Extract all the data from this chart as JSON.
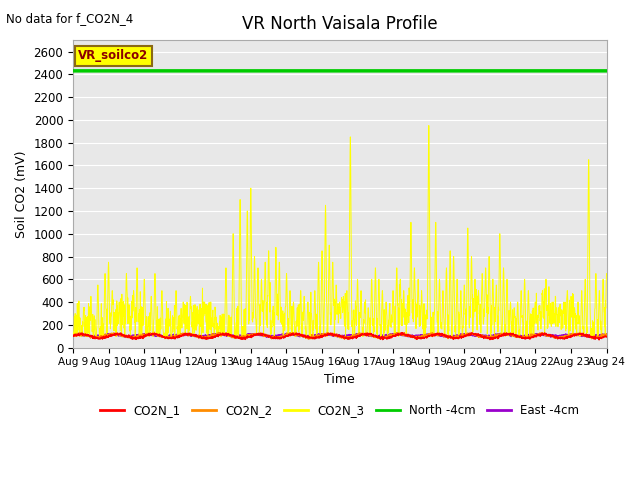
{
  "title": "VR North Vaisala Profile",
  "no_data_text": "No data for f_CO2N_4",
  "ylabel": "Soil CO2 (mV)",
  "xlabel": "Time",
  "ylim": [
    0,
    2700
  ],
  "yticks": [
    0,
    200,
    400,
    600,
    800,
    1000,
    1200,
    1400,
    1600,
    1800,
    2000,
    2200,
    2400,
    2600
  ],
  "legend_entries": [
    "CO2N_1",
    "CO2N_2",
    "CO2N_3",
    "North -4cm",
    "East -4cm"
  ],
  "legend_colors": [
    "#ff0000",
    "#ff8c00",
    "#ffff00",
    "#00cc00",
    "#9900cc"
  ],
  "north_value": 2430,
  "east_value": 108,
  "co2n1_base": 100,
  "co2n2_base": 105,
  "box_label": "VR_soilco2",
  "box_color": "#ffff00",
  "box_text_color": "#8b0000",
  "background_color": "#e8e8e8",
  "x_start": 9,
  "x_end": 24,
  "xtick_labels": [
    "Aug 9",
    "Aug 10",
    "Aug 11",
    "Aug 12",
    "Aug 13",
    "Aug 14",
    "Aug 15",
    "Aug 16",
    "Aug 17",
    "Aug 18",
    "Aug 19",
    "Aug 20",
    "Aug 21",
    "Aug 22",
    "Aug 23",
    "Aug 24"
  ],
  "xtick_positions": [
    9,
    10,
    11,
    12,
    13,
    14,
    15,
    16,
    17,
    18,
    19,
    20,
    21,
    22,
    23,
    24
  ]
}
